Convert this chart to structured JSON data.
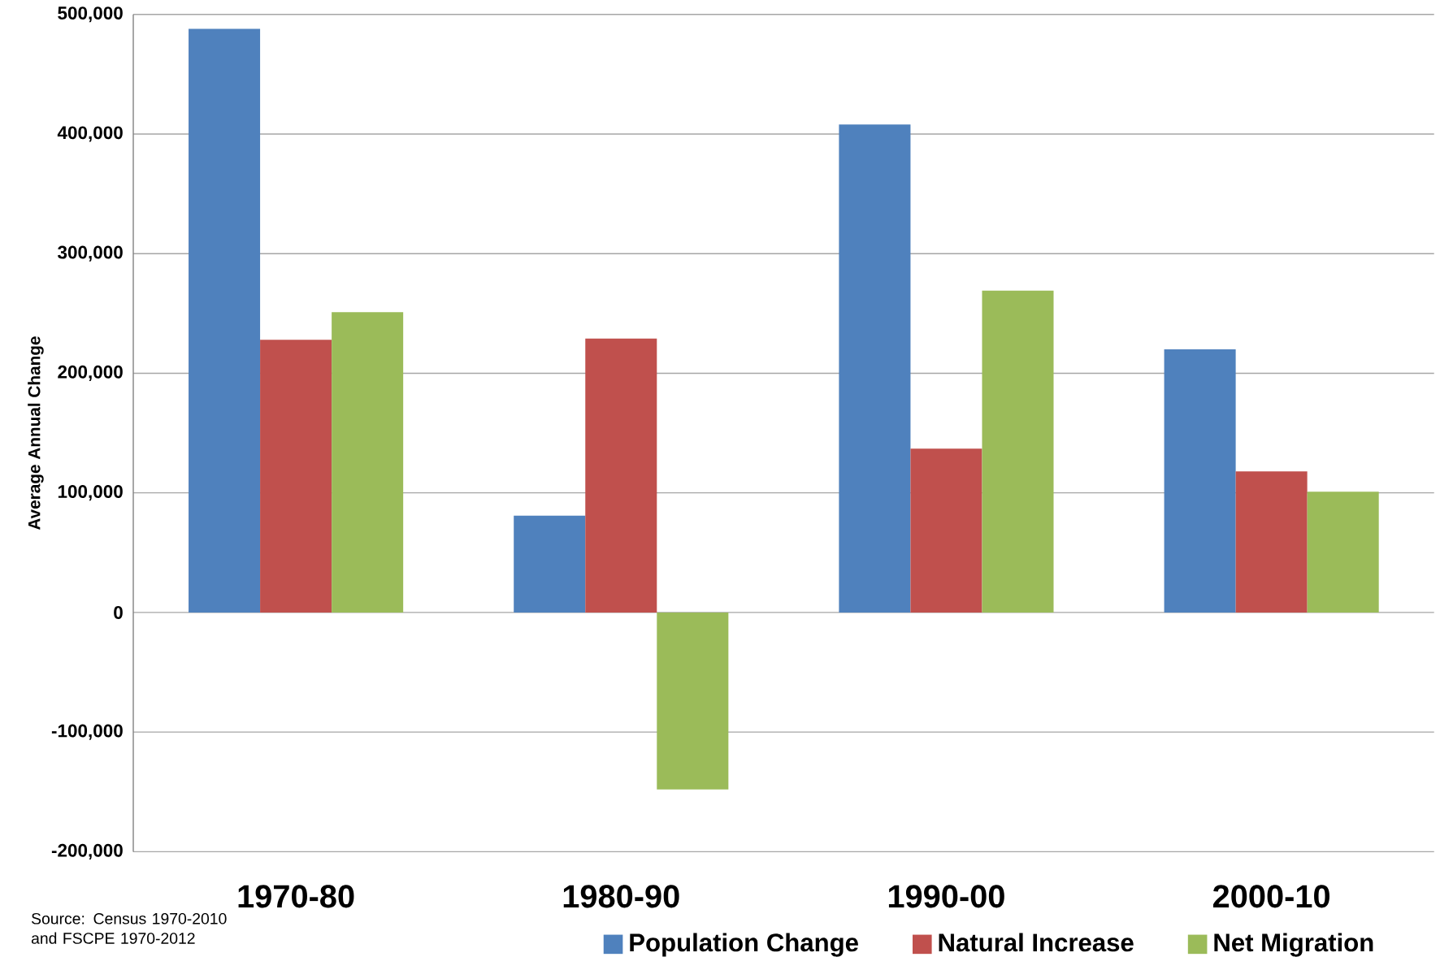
{
  "chart_data": {
    "type": "bar",
    "ylabel": "Average Annual Change",
    "categories": [
      "1970-80",
      "1980-90",
      "1990-00",
      "2000-10"
    ],
    "series": [
      {
        "name": "Population Change",
        "color": "#4f81bd",
        "values": [
          488000,
          81000,
          408000,
          220000
        ]
      },
      {
        "name": "Natural Increase",
        "color": "#c0504d",
        "values": [
          228000,
          229000,
          137000,
          118000
        ]
      },
      {
        "name": "Net Migration",
        "color": "#9bbb59",
        "values": [
          251000,
          -148000,
          269000,
          101000
        ]
      }
    ],
    "ylim": [
      -200000,
      500000
    ],
    "yticks": [
      {
        "value": -200000,
        "label": "-200,000"
      },
      {
        "value": -100000,
        "label": "-100,000"
      },
      {
        "value": 0,
        "label": "0"
      },
      {
        "value": 100000,
        "label": "100,000"
      },
      {
        "value": 200000,
        "label": "200,000"
      },
      {
        "value": 300000,
        "label": "300,000"
      },
      {
        "value": 400000,
        "label": "400,000"
      },
      {
        "value": 500000,
        "label": "500,000"
      }
    ],
    "grid": "y",
    "legend": "bottom",
    "annotations": [
      "Source: Census 1970-2010 and FSCPE 1970-2012"
    ]
  }
}
